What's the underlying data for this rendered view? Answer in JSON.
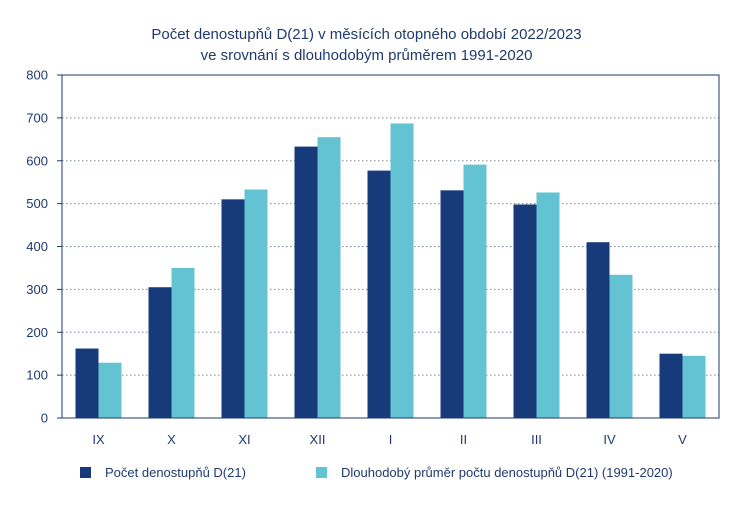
{
  "chart_data": {
    "type": "bar",
    "title_line1": "Počet denostupňů D(21) v měsících otopného období 2022/2023",
    "title_line2": "ve srovnání s dlouhodobým průměrem 1991-2020",
    "categories": [
      "IX",
      "X",
      "XI",
      "XII",
      "I",
      "II",
      "III",
      "IV",
      "V"
    ],
    "series": [
      {
        "name": "Počet denostupňů D(21)",
        "color": "#173a7a",
        "values": [
          162,
          305,
          510,
          633,
          577,
          531,
          498,
          410,
          150
        ]
      },
      {
        "name": "Dlouhodobý průměr počtu denostupňů D(21) (1991-2020)",
        "color": "#64c3d3",
        "values": [
          129,
          350,
          533,
          655,
          687,
          591,
          526,
          334,
          145
        ]
      }
    ],
    "ylim": [
      0,
      800
    ],
    "yticks": [
      "0",
      "100",
      "200",
      "300",
      "400",
      "500",
      "600",
      "700",
      "800"
    ],
    "grid": true,
    "legend_position": "bottom"
  }
}
